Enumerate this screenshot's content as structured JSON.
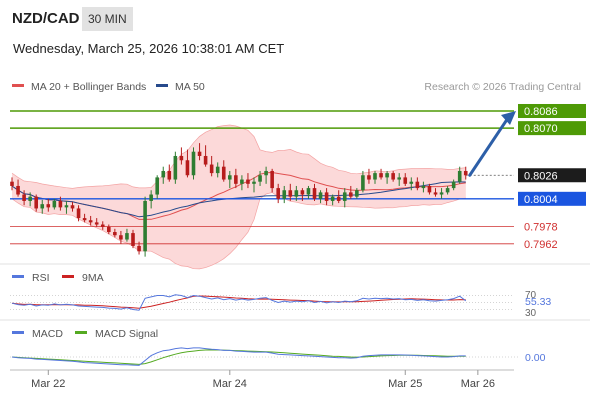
{
  "header": {
    "symbol": "NZD/CAD",
    "timeframe": "30 MIN",
    "datetime": "Wednesday, March 25, 2026 10:38:01 AM CET"
  },
  "legend": {
    "ma20_label": "MA 20 + Bollinger Bands",
    "ma50_label": "MA 50",
    "credit": "Research © 2026 Trading Central"
  },
  "colors": {
    "bull": "#2e7d32",
    "bear": "#b71c1c",
    "ma20": "#e05050",
    "ma50": "#274a8c",
    "bb_fill": "#fbd2d2",
    "resistance": "#4e9a06",
    "support": "#1a55e0",
    "support2": "#d03030",
    "arrow": "#2d5fa8",
    "rsi": "#5577dd",
    "nine_ma": "#cc2222",
    "macd": "#5577dd",
    "macd_signal": "#55aa22"
  },
  "levels": {
    "r2": "0.8086",
    "r1": "0.8070",
    "last": "0.8026",
    "s1": "0.8004",
    "s2": "0.7978",
    "s3": "0.7962"
  },
  "rsi_panel": {
    "rsi_label": "RSI",
    "ma_label": "9MA",
    "level_70": "70",
    "level_30": "30",
    "value": "55.33"
  },
  "macd_panel": {
    "macd_label": "MACD",
    "signal_label": "MACD Signal",
    "value": "0.00"
  },
  "xaxis": {
    "ticks": [
      {
        "label": "Mar 22",
        "bar": 6
      },
      {
        "label": "Mar 24",
        "bar": 36
      },
      {
        "label": "Mar 25",
        "bar": 65
      },
      {
        "label": "Mar 26",
        "bar": 77
      }
    ]
  },
  "chart_data": {
    "type": "candlestick",
    "timeframe": "30 MIN",
    "ylim": [
      0.7945,
      0.81
    ],
    "price_levels": [
      0.8086,
      0.807,
      0.8026,
      0.8004,
      0.7978,
      0.7962
    ],
    "projection_target": 0.8086,
    "candles": [
      [
        0.802,
        0.8024,
        0.8012,
        0.8016
      ],
      [
        0.8016,
        0.8022,
        0.8006,
        0.8008
      ],
      [
        0.8008,
        0.8012,
        0.7998,
        0.8002
      ],
      [
        0.8002,
        0.801,
        0.7997,
        0.8006
      ],
      [
        0.8006,
        0.8008,
        0.7992,
        0.7995
      ],
      [
        0.7995,
        0.8003,
        0.799,
        0.7999
      ],
      [
        0.7999,
        0.8004,
        0.7992,
        0.7996
      ],
      [
        0.7996,
        0.8004,
        0.7994,
        0.8002
      ],
      [
        0.8002,
        0.8006,
        0.7993,
        0.7996
      ],
      [
        0.7996,
        0.8002,
        0.799,
        0.7998
      ],
      [
        0.7998,
        0.8001,
        0.7992,
        0.7995
      ],
      [
        0.7995,
        0.7998,
        0.7983,
        0.7986
      ],
      [
        0.7986,
        0.799,
        0.7982,
        0.7984
      ],
      [
        0.7984,
        0.7988,
        0.7979,
        0.7982
      ],
      [
        0.7982,
        0.7986,
        0.7978,
        0.798
      ],
      [
        0.798,
        0.7983,
        0.7975,
        0.7978
      ],
      [
        0.7978,
        0.798,
        0.7971,
        0.7973
      ],
      [
        0.7973,
        0.7976,
        0.7968,
        0.797
      ],
      [
        0.797,
        0.7974,
        0.7962,
        0.7966
      ],
      [
        0.7966,
        0.7976,
        0.7964,
        0.7972
      ],
      [
        0.7972,
        0.7975,
        0.7958,
        0.796
      ],
      [
        0.796,
        0.7964,
        0.7952,
        0.7955
      ],
      [
        0.7955,
        0.8006,
        0.795,
        0.8002
      ],
      [
        0.8002,
        0.8012,
        0.7995,
        0.8008
      ],
      [
        0.8008,
        0.8026,
        0.8004,
        0.8024
      ],
      [
        0.8024,
        0.8034,
        0.8018,
        0.803
      ],
      [
        0.803,
        0.8036,
        0.802,
        0.8022
      ],
      [
        0.8022,
        0.8048,
        0.8018,
        0.8044
      ],
      [
        0.8044,
        0.8052,
        0.8036,
        0.804
      ],
      [
        0.804,
        0.805,
        0.8024,
        0.8026
      ],
      [
        0.8026,
        0.8052,
        0.8022,
        0.8048
      ],
      [
        0.8048,
        0.8056,
        0.804,
        0.8044
      ],
      [
        0.8044,
        0.8054,
        0.8034,
        0.8036
      ],
      [
        0.8036,
        0.8044,
        0.8025,
        0.8028
      ],
      [
        0.8028,
        0.8038,
        0.8024,
        0.8034
      ],
      [
        0.8034,
        0.804,
        0.802,
        0.8022
      ],
      [
        0.8022,
        0.803,
        0.8014,
        0.8026
      ],
      [
        0.8026,
        0.8032,
        0.8014,
        0.8018
      ],
      [
        0.8018,
        0.8026,
        0.8012,
        0.8022
      ],
      [
        0.8022,
        0.8028,
        0.8014,
        0.8018
      ],
      [
        0.8018,
        0.8024,
        0.801,
        0.802
      ],
      [
        0.802,
        0.803,
        0.8016,
        0.8026
      ],
      [
        0.8026,
        0.8034,
        0.8018,
        0.803
      ],
      [
        0.803,
        0.8032,
        0.801,
        0.8014
      ],
      [
        0.8014,
        0.8018,
        0.8,
        0.8004
      ],
      [
        0.8004,
        0.8016,
        0.8,
        0.8012
      ],
      [
        0.8012,
        0.8018,
        0.8002,
        0.8006
      ],
      [
        0.8006,
        0.8016,
        0.8002,
        0.8012
      ],
      [
        0.8012,
        0.8014,
        0.8002,
        0.8008
      ],
      [
        0.8008,
        0.8016,
        0.8004,
        0.8014
      ],
      [
        0.8014,
        0.8018,
        0.8002,
        0.8004
      ],
      [
        0.8004,
        0.8012,
        0.8,
        0.801
      ],
      [
        0.801,
        0.8014,
        0.7998,
        0.8002
      ],
      [
        0.8002,
        0.8008,
        0.7998,
        0.8006
      ],
      [
        0.8006,
        0.8012,
        0.8,
        0.8002
      ],
      [
        0.8002,
        0.8014,
        0.7996,
        0.801
      ],
      [
        0.801,
        0.8016,
        0.8004,
        0.8006
      ],
      [
        0.8006,
        0.8014,
        0.8004,
        0.8012
      ],
      [
        0.8012,
        0.803,
        0.801,
        0.8026
      ],
      [
        0.8026,
        0.8032,
        0.8018,
        0.8022
      ],
      [
        0.8022,
        0.803,
        0.8018,
        0.8028
      ],
      [
        0.8028,
        0.8032,
        0.8022,
        0.8024
      ],
      [
        0.8024,
        0.803,
        0.8018,
        0.8028
      ],
      [
        0.8028,
        0.803,
        0.802,
        0.8022
      ],
      [
        0.8022,
        0.8028,
        0.8016,
        0.8024
      ],
      [
        0.8024,
        0.8028,
        0.8016,
        0.8018
      ],
      [
        0.8018,
        0.8024,
        0.8012,
        0.802
      ],
      [
        0.802,
        0.8024,
        0.8012,
        0.8014
      ],
      [
        0.8014,
        0.802,
        0.801,
        0.8016
      ],
      [
        0.8016,
        0.8018,
        0.8008,
        0.801
      ],
      [
        0.801,
        0.8014,
        0.8006,
        0.8008
      ],
      [
        0.8008,
        0.8014,
        0.8004,
        0.801
      ],
      [
        0.801,
        0.8016,
        0.8008,
        0.8014
      ],
      [
        0.8014,
        0.8022,
        0.8012,
        0.802
      ],
      [
        0.802,
        0.8034,
        0.8018,
        0.803
      ],
      [
        0.803,
        0.8034,
        0.8022,
        0.8026
      ]
    ],
    "rsi": [
      48,
      44,
      42,
      45,
      40,
      43,
      42,
      46,
      43,
      45,
      43,
      40,
      39,
      38,
      37,
      36,
      34,
      33,
      31,
      35,
      30,
      28,
      62,
      66,
      70,
      70,
      66,
      72,
      70,
      64,
      70,
      68,
      64,
      60,
      63,
      58,
      61,
      57,
      60,
      57,
      59,
      62,
      64,
      56,
      50,
      54,
      51,
      54,
      52,
      55,
      50,
      53,
      49,
      52,
      50,
      54,
      52,
      55,
      62,
      60,
      62,
      61,
      62,
      60,
      61,
      58,
      59,
      56,
      58,
      55,
      54,
      56,
      58,
      61,
      68,
      55
    ],
    "macd": [
      0,
      -0.1,
      -0.15,
      -0.2,
      -0.3,
      -0.35,
      -0.4,
      -0.45,
      -0.5,
      -0.55,
      -0.6,
      -0.7,
      -0.8,
      -0.85,
      -0.9,
      -0.95,
      -1.0,
      -1.05,
      -1.1,
      -1.1,
      -1.15,
      -1.2,
      -0.5,
      0.2,
      0.6,
      0.9,
      1.0,
      1.2,
      1.3,
      1.2,
      1.3,
      1.3,
      1.2,
      1.1,
      1.05,
      0.95,
      0.95,
      0.85,
      0.8,
      0.75,
      0.7,
      0.7,
      0.7,
      0.55,
      0.4,
      0.35,
      0.3,
      0.25,
      0.2,
      0.15,
      0.1,
      0.05,
      0.0,
      -0.05,
      -0.1,
      -0.1,
      -0.15,
      -0.1,
      0.1,
      0.2,
      0.25,
      0.3,
      0.3,
      0.3,
      0.3,
      0.28,
      0.25,
      0.2,
      0.15,
      0.1,
      0.05,
      0.0,
      0.0,
      0.05,
      0.15,
      0.15
    ],
    "macd_signal": [
      0,
      -0.05,
      -0.1,
      -0.15,
      -0.2,
      -0.25,
      -0.3,
      -0.35,
      -0.4,
      -0.45,
      -0.5,
      -0.55,
      -0.6,
      -0.65,
      -0.7,
      -0.75,
      -0.8,
      -0.85,
      -0.9,
      -0.95,
      -1.0,
      -1.05,
      -0.95,
      -0.7,
      -0.4,
      -0.1,
      0.15,
      0.4,
      0.6,
      0.75,
      0.85,
      0.95,
      1.0,
      1.0,
      1.0,
      0.98,
      0.95,
      0.92,
      0.88,
      0.85,
      0.82,
      0.78,
      0.76,
      0.72,
      0.66,
      0.6,
      0.54,
      0.48,
      0.42,
      0.36,
      0.3,
      0.24,
      0.18,
      0.12,
      0.08,
      0.04,
      0.0,
      -0.02,
      0.0,
      0.05,
      0.1,
      0.15,
      0.2,
      0.22,
      0.24,
      0.25,
      0.25,
      0.24,
      0.22,
      0.2,
      0.17,
      0.14,
      0.11,
      0.1,
      0.11,
      0.12
    ]
  }
}
